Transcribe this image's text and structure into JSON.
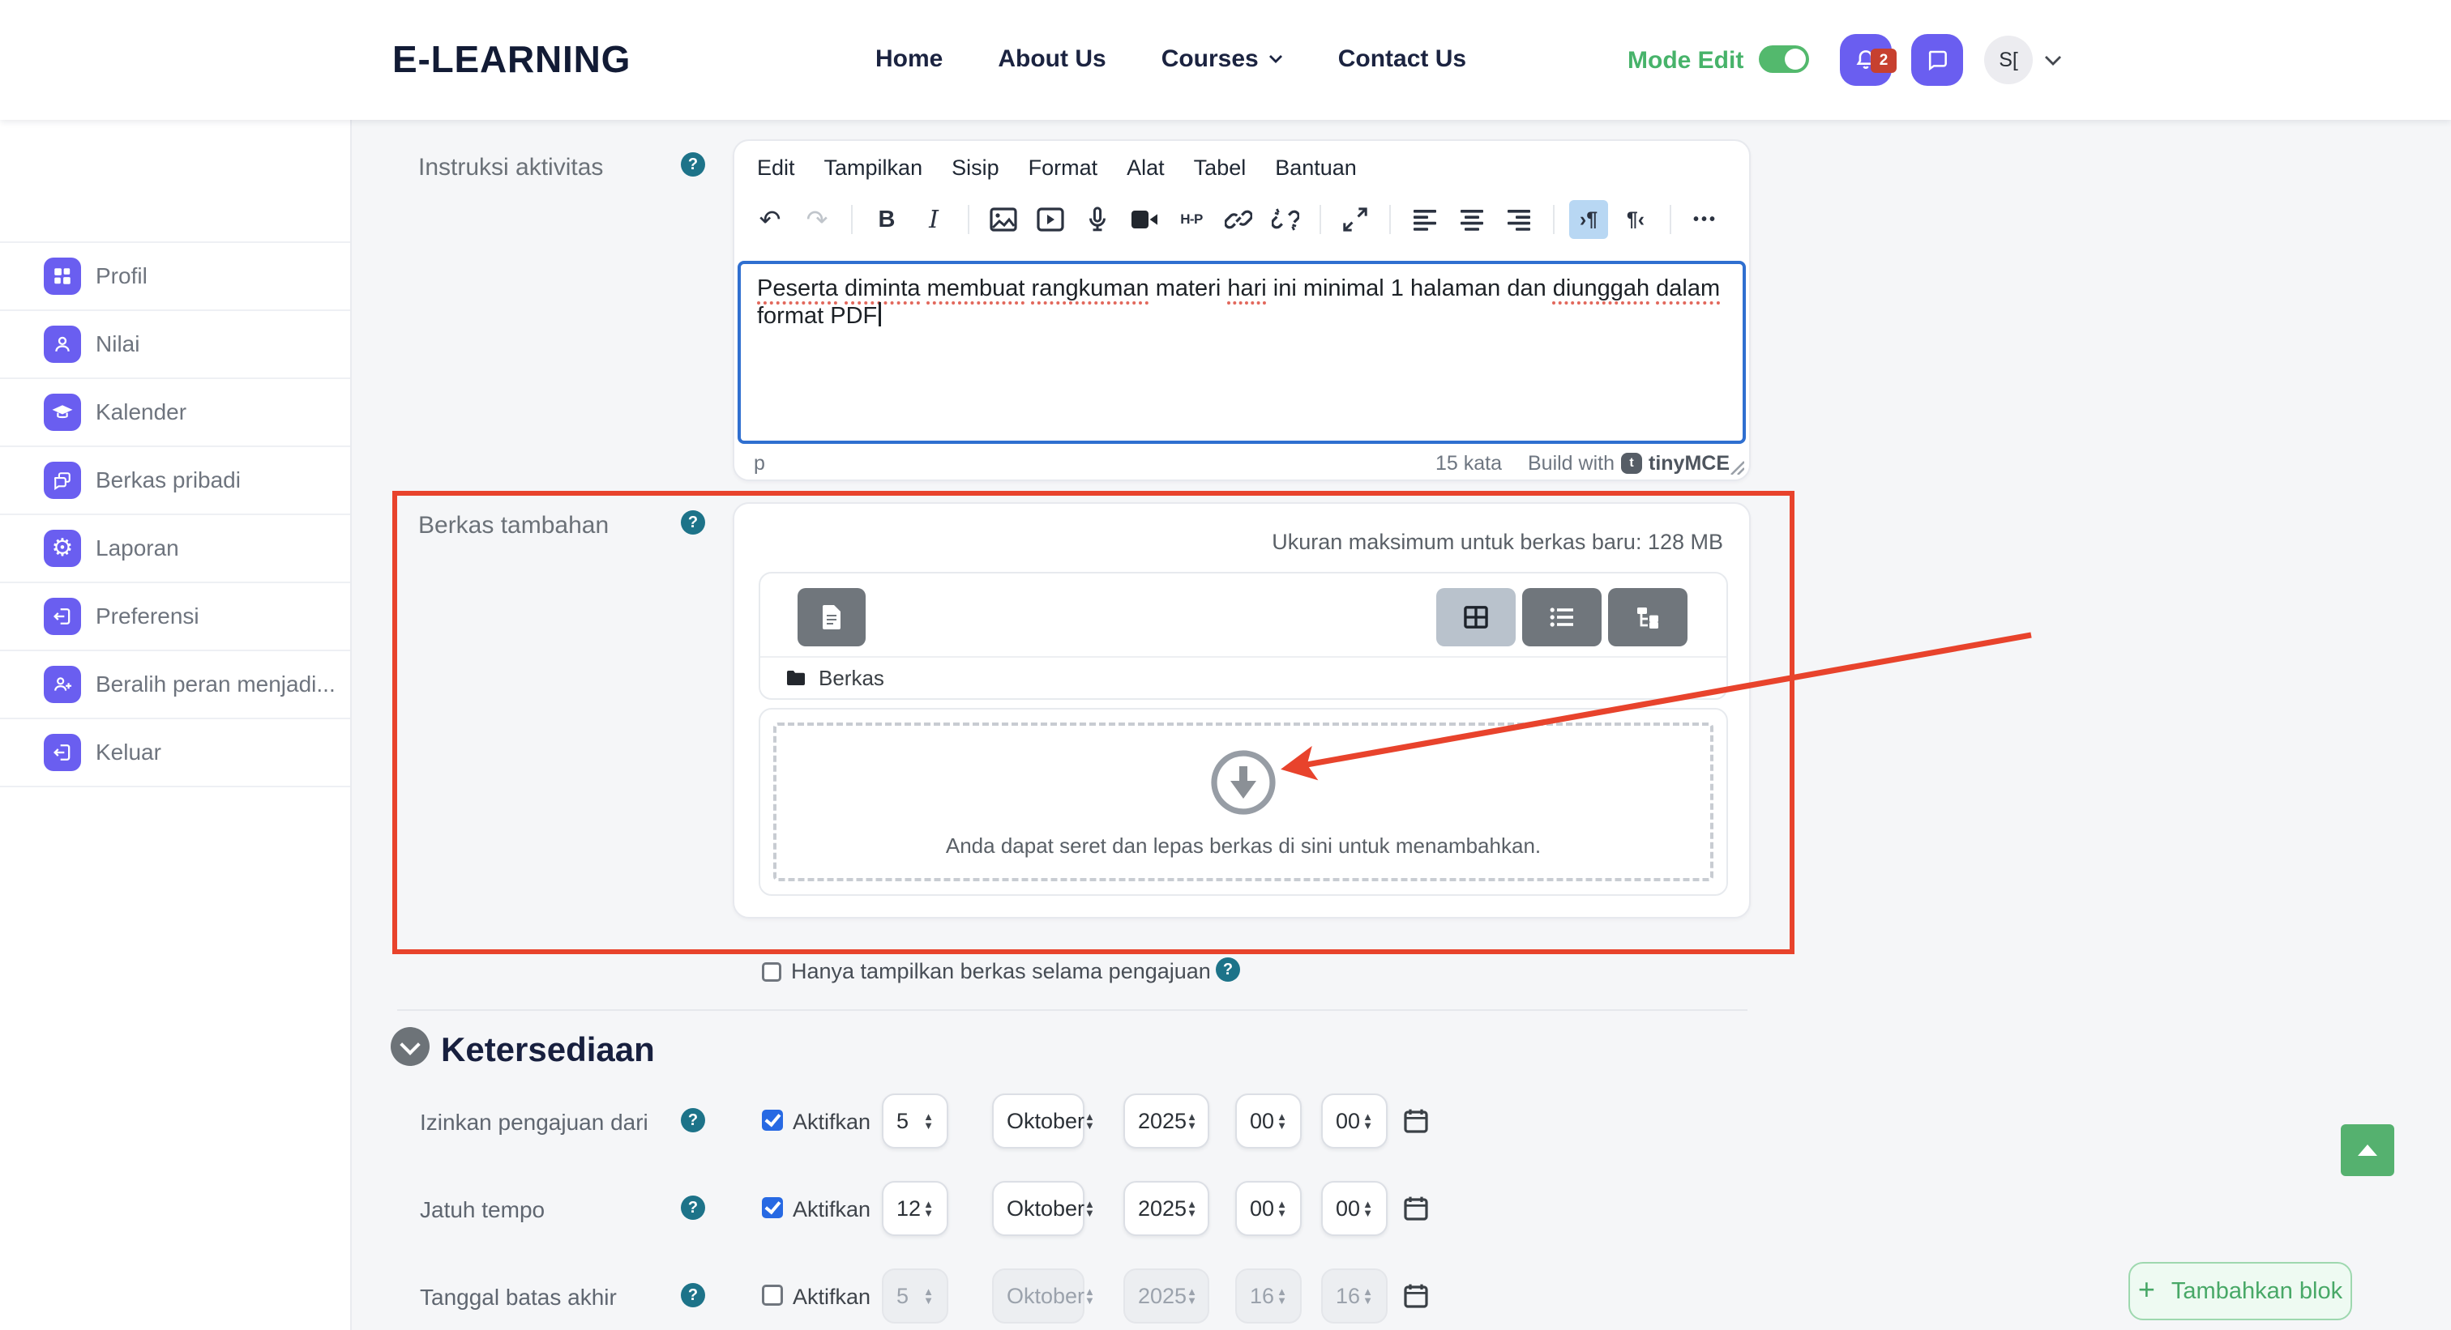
{
  "header": {
    "logo": "E-LEARNING",
    "nav": [
      {
        "label": "Home"
      },
      {
        "label": "About Us"
      },
      {
        "label": "Courses",
        "caret": true
      },
      {
        "label": "Contact Us"
      }
    ],
    "mode_edit_label": "Mode Edit",
    "mode_edit_on": true,
    "notification_count": "2",
    "avatar_text": "S[",
    "icons": [
      "bell-icon",
      "chat-icon",
      "chevron-down-icon"
    ]
  },
  "sidebar": {
    "items": [
      {
        "label": "Profil",
        "icon": "dashboard-icon"
      },
      {
        "label": "Nilai",
        "icon": "user-icon"
      },
      {
        "label": "Kalender",
        "icon": "graduation-cap-icon"
      },
      {
        "label": "Berkas pribadi",
        "icon": "chat-bubbles-icon"
      },
      {
        "label": "Laporan",
        "icon": "gear-icon"
      },
      {
        "label": "Preferensi",
        "icon": "exit-arrow-icon"
      },
      {
        "label": "Beralih peran menjadi...",
        "icon": "user-plus-icon"
      },
      {
        "label": "Keluar",
        "icon": "logout-icon"
      }
    ]
  },
  "instructions": {
    "label": "Instruksi aktivitas",
    "editor": {
      "menu": [
        "Edit",
        "Tampilkan",
        "Sisip",
        "Format",
        "Alat",
        "Tabel",
        "Bantuan"
      ],
      "toolbar_icons": [
        "undo-icon",
        "redo-icon",
        "bold-icon",
        "italic-icon",
        "image-icon",
        "media-icon",
        "microphone-icon",
        "video-icon",
        "h5p-icon",
        "link-icon",
        "unlink-icon",
        "fullscreen-icon",
        "align-left-icon",
        "align-center-icon",
        "align-right-icon",
        "ltr-icon",
        "rtl-icon",
        "more-icon"
      ],
      "active_toolbar_icon": "ltr-icon",
      "content_segments": [
        {
          "text": "Peserta",
          "misspelled": true
        },
        {
          "text": "diminta",
          "misspelled": true
        },
        {
          "text": "membuat",
          "misspelled": true
        },
        {
          "text": "rangkuman",
          "misspelled": true
        },
        {
          "text": "materi",
          "misspelled": false
        },
        {
          "text": "hari",
          "misspelled": true
        },
        {
          "text": "ini",
          "misspelled": false
        },
        {
          "text": "minimal",
          "misspelled": false
        },
        {
          "text": "1",
          "misspelled": false
        },
        {
          "text": "halaman",
          "misspelled": false
        },
        {
          "text": "dan",
          "misspelled": false
        },
        {
          "text": "diunggah",
          "misspelled": true
        },
        {
          "text": "dalam",
          "misspelled": true
        },
        {
          "text": "format",
          "misspelled": false
        },
        {
          "text": "PDF",
          "misspelled": false
        }
      ],
      "status_block_path": "p",
      "word_count": "15 kata",
      "build_with": "Build with",
      "brand": "tinyMCE"
    }
  },
  "additional_files": {
    "label": "Berkas tambahan",
    "max_size_text": "Ukuran maksimum untuk berkas baru: 128 MB",
    "view_icons": [
      "grid-view-icon",
      "list-view-icon",
      "tree-view-icon"
    ],
    "active_view": "grid-view-icon",
    "folder_label": "Berkas",
    "dropzone_text": "Anda dapat seret dan lepas berkas di sini untuk menambahkan."
  },
  "submission_checkbox": {
    "label": "Hanya tampilkan berkas selama pengajuan",
    "checked": false
  },
  "availability": {
    "title": "Ketersediaan",
    "enable_label": "Aktifkan",
    "rows": [
      {
        "label": "Izinkan pengajuan dari",
        "enabled": true,
        "day": "5",
        "month": "Oktober",
        "year": "2025",
        "hour": "00",
        "minute": "00"
      },
      {
        "label": "Jatuh tempo",
        "enabled": true,
        "day": "12",
        "month": "Oktober",
        "year": "2025",
        "hour": "00",
        "minute": "00"
      },
      {
        "label": "Tanggal batas akhir",
        "enabled": false,
        "day": "5",
        "month": "Oktober",
        "year": "2025",
        "hour": "16",
        "minute": "16"
      }
    ]
  },
  "footer": {
    "add_block_label": "Tambahkan blok",
    "scroll_top_icon": "arrow-up-icon"
  },
  "annotation": {
    "type": "red-box-and-arrow",
    "color": "#e8432c"
  },
  "colors": {
    "accent_purple": "#6a5ef0",
    "toggle_green": "#53b96d",
    "mode_edit_green": "#47b36a",
    "annotation_red": "#e8432c",
    "help_teal": "#1d7389",
    "focus_blue": "#2f6fd0",
    "checkbox_blue": "#2769e3",
    "scroll_top_green": "#55b16f",
    "add_block_green": "#48a867"
  }
}
